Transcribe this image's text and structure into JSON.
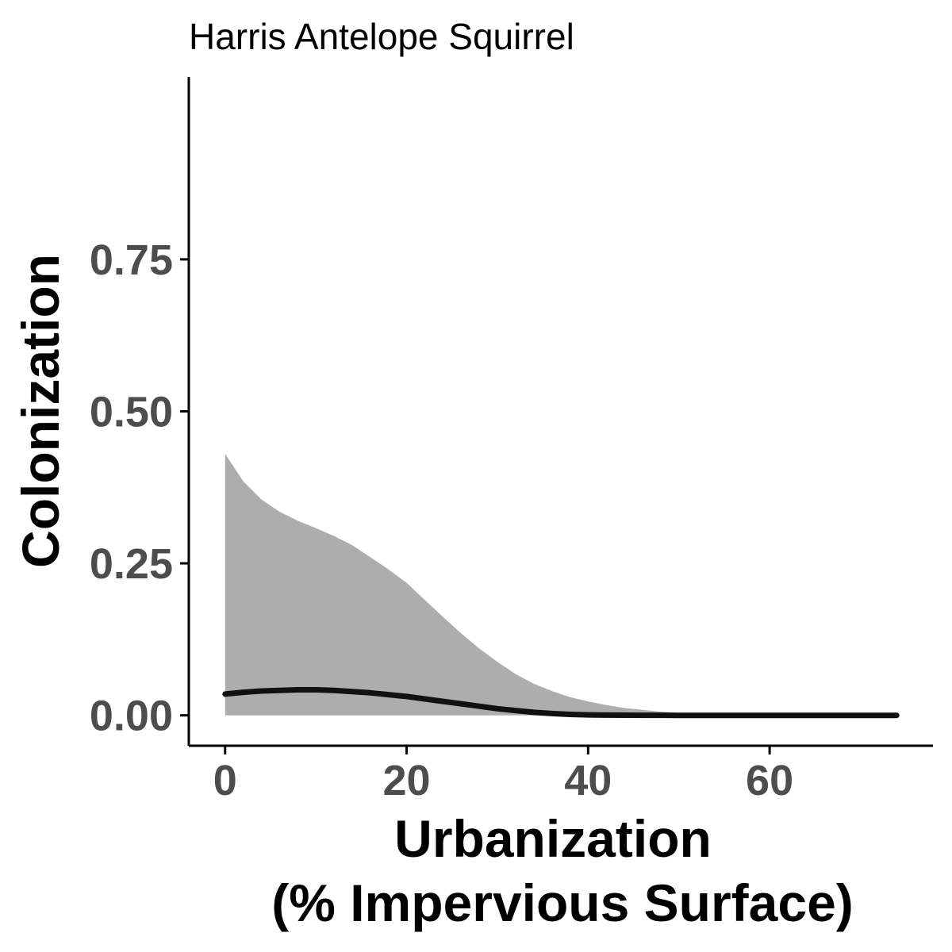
{
  "chart_data": {
    "type": "area",
    "title": "Harris Antelope Squirrel",
    "xlabel_lines": [
      "Urbanization",
      "(% Impervious Surface)"
    ],
    "ylabel": "Colonization",
    "xlim": [
      -4,
      78
    ],
    "ylim": [
      -0.05,
      1.05
    ],
    "x_ticks": [
      0,
      20,
      40,
      60
    ],
    "x_tick_labels": [
      "0",
      "20",
      "40",
      "60"
    ],
    "y_ticks": [
      0,
      0.25,
      0.5,
      0.75
    ],
    "y_tick_labels": [
      "0.00",
      "0.25",
      "0.50",
      "0.75"
    ],
    "grid": false,
    "legend": "none",
    "x": [
      0,
      2,
      4,
      6,
      8,
      10,
      12,
      14,
      16,
      18,
      20,
      22,
      24,
      26,
      28,
      30,
      32,
      34,
      36,
      38,
      40,
      42,
      44,
      46,
      48,
      50,
      52,
      54,
      56,
      58,
      60,
      62,
      64,
      66,
      68,
      70,
      72,
      74
    ],
    "series": [
      {
        "role": "estimate",
        "color": "#111111",
        "values": [
          0.035,
          0.038,
          0.04,
          0.041,
          0.042,
          0.042,
          0.041,
          0.039,
          0.037,
          0.034,
          0.031,
          0.027,
          0.023,
          0.019,
          0.015,
          0.011,
          0.008,
          0.005,
          0.003,
          0.0015,
          0.0008,
          0.0004,
          0.0002,
          0.0001,
          5e-05,
          2e-05,
          1e-05,
          0,
          0,
          0,
          0,
          0,
          0,
          0,
          0,
          0,
          0,
          0
        ]
      },
      {
        "role": "confidence-band",
        "color": "#adadad",
        "lower": [
          0,
          0,
          0,
          0,
          0,
          0,
          0,
          0,
          0,
          0,
          0,
          0,
          0,
          0,
          0,
          0,
          0,
          0,
          0,
          0,
          0,
          0,
          0,
          0,
          0,
          0,
          0,
          0,
          0,
          0,
          0,
          0,
          0,
          0,
          0,
          0,
          0,
          0
        ],
        "upper": [
          0.43,
          0.385,
          0.355,
          0.335,
          0.32,
          0.308,
          0.295,
          0.28,
          0.26,
          0.24,
          0.218,
          0.19,
          0.162,
          0.135,
          0.11,
          0.088,
          0.068,
          0.052,
          0.04,
          0.03,
          0.023,
          0.017,
          0.012,
          0.009,
          0.006,
          0.004,
          0.003,
          0.002,
          0.0013,
          0.0009,
          0.0006,
          0.0004,
          0.0002,
          0.0001,
          5e-05,
          2e-05,
          1e-05,
          0
        ]
      }
    ]
  }
}
